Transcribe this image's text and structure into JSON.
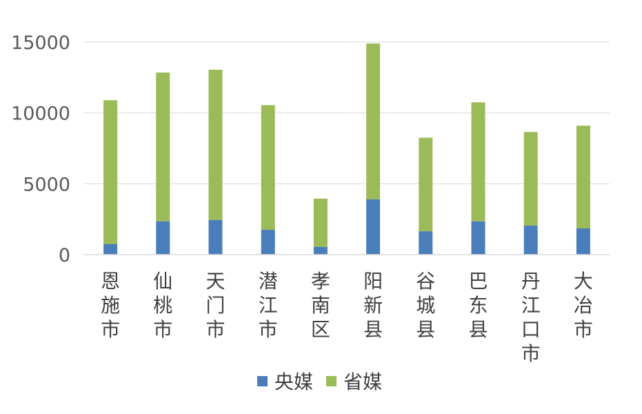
{
  "chart_data": {
    "type": "bar",
    "stacked": true,
    "title": "",
    "xlabel": "",
    "ylabel": "",
    "ylim": [
      0,
      15000
    ],
    "yticks": [
      0,
      5000,
      10000,
      15000
    ],
    "grid": true,
    "legend_position": "bottom",
    "categories": [
      "恩施市",
      "仙桃市",
      "天门市",
      "潜江市",
      "孝南区",
      "阳新县",
      "谷城县",
      "巴东县",
      "丹江口市",
      "大冶市"
    ],
    "series": [
      {
        "name": "央媒",
        "color": "#4a7ebb",
        "values": [
          750,
          2350,
          2450,
          1750,
          550,
          3900,
          1650,
          2350,
          2050,
          1850
        ]
      },
      {
        "name": "省媒",
        "color": "#9bbb59",
        "values": [
          10150,
          10500,
          10600,
          8800,
          3400,
          11000,
          6600,
          8400,
          6600,
          7250
        ]
      }
    ]
  }
}
